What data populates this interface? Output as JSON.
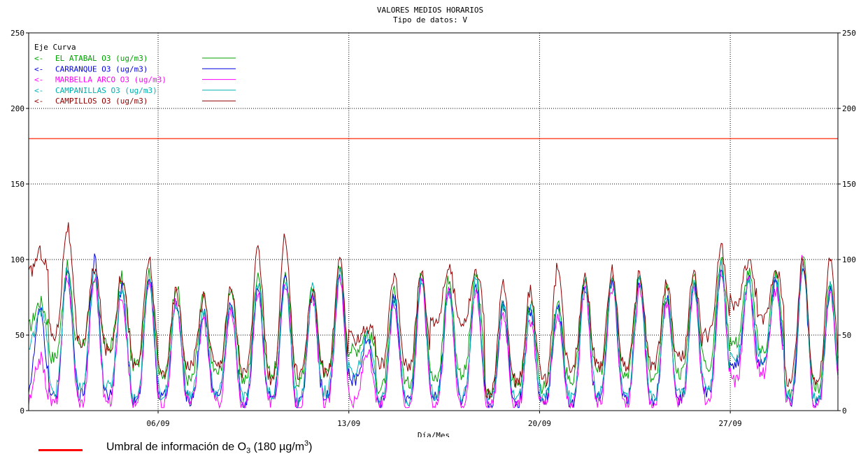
{
  "title": "VALORES MEDIOS HORARIOS",
  "subtitle_label": "Tipo de datos:",
  "subtitle_value": "V",
  "xlabel": "Día/Mes",
  "legend": {
    "header_eje": "Eje",
    "header_curva": "Curva",
    "arrow": "<-"
  },
  "threshold_note": {
    "text_before": "Umbral de información  de O",
    "sub": "3",
    "text_middle": " (180 µg/m",
    "sup": "3",
    "text_after": ")",
    "color": "#ff0000"
  },
  "chart_data": {
    "type": "line",
    "title": "VALORES MEDIOS HORARIOS",
    "subtitle": "Tipo de datos: V",
    "xlabel": "Día/Mes",
    "ylabel": "",
    "ylim": [
      0,
      250
    ],
    "xlim_days": [
      1,
      31
    ],
    "x_unit": "day of September (hourly means)",
    "yticks": [
      0,
      50,
      100,
      150,
      200,
      250
    ],
    "xticks": [
      {
        "day": 6,
        "label": "06/09"
      },
      {
        "day": 13,
        "label": "13/09"
      },
      {
        "day": 20,
        "label": "20/09"
      },
      {
        "day": 27,
        "label": "27/09"
      }
    ],
    "grid": "dotted",
    "legend_position": "top-left",
    "threshold": {
      "value": 180,
      "color": "#ff3b1f"
    },
    "series": [
      {
        "name": "EL ATABAL O3  (ug/m3)",
        "color": "#00a000",
        "daily_peak": [
          72,
          95,
          85,
          88,
          92,
          84,
          75,
          82,
          92,
          90,
          82,
          94,
          52,
          78,
          95,
          88,
          90,
          72,
          70,
          72,
          88,
          92,
          90,
          80,
          88,
          100,
          92,
          90,
          100,
          85,
          90
        ],
        "daily_min": [
          55,
          35,
          45,
          42,
          30,
          22,
          20,
          25,
          20,
          25,
          20,
          25,
          40,
          15,
          18,
          20,
          25,
          10,
          18,
          15,
          20,
          25,
          25,
          20,
          25,
          30,
          45,
          40,
          10,
          15,
          20
        ]
      },
      {
        "name": "CARRANQUE O3  (ug/m3)",
        "color": "#0000e0",
        "daily_peak": [
          65,
          92,
          100,
          80,
          90,
          70,
          65,
          70,
          82,
          86,
          78,
          90,
          48,
          75,
          88,
          80,
          84,
          68,
          66,
          68,
          82,
          86,
          86,
          76,
          84,
          94,
          88,
          86,
          95,
          80,
          85
        ],
        "daily_min": [
          15,
          8,
          10,
          12,
          5,
          8,
          8,
          10,
          5,
          8,
          5,
          10,
          20,
          5,
          5,
          8,
          8,
          5,
          5,
          8,
          5,
          8,
          8,
          5,
          8,
          10,
          30,
          30,
          5,
          5,
          8
        ]
      },
      {
        "name": "MARBELLA ARCO O3  (ug/m3)",
        "color": "#ff00ff",
        "daily_peak": [
          35,
          90,
          88,
          78,
          85,
          72,
          60,
          65,
          80,
          85,
          75,
          88,
          40,
          70,
          85,
          80,
          80,
          65,
          60,
          65,
          78,
          82,
          80,
          72,
          80,
          92,
          85,
          80,
          102,
          80,
          82
        ],
        "daily_min": [
          5,
          5,
          5,
          5,
          3,
          5,
          5,
          5,
          3,
          5,
          3,
          5,
          5,
          3,
          3,
          5,
          5,
          3,
          3,
          5,
          3,
          5,
          5,
          3,
          5,
          5,
          20,
          25,
          5,
          3,
          5
        ]
      },
      {
        "name": "CAMPANILLAS O3  (ug/m3)",
        "color": "#00b0b0",
        "daily_peak": [
          68,
          92,
          90,
          82,
          88,
          72,
          65,
          72,
          85,
          86,
          80,
          92,
          50,
          76,
          88,
          82,
          86,
          70,
          66,
          70,
          84,
          88,
          86,
          78,
          84,
          95,
          88,
          88,
          96,
          82,
          86
        ],
        "daily_min": [
          40,
          12,
          15,
          15,
          8,
          10,
          10,
          12,
          8,
          10,
          8,
          12,
          25,
          8,
          8,
          10,
          10,
          8,
          8,
          10,
          8,
          10,
          10,
          8,
          10,
          15,
          35,
          35,
          8,
          8,
          10
        ]
      },
      {
        "name": "CAMPILLOS O3  (ug/m3)",
        "color": "#900000",
        "daily_peak": [
          105,
          122,
          95,
          90,
          100,
          80,
          75,
          80,
          105,
          115,
          80,
          98,
          55,
          90,
          92,
          95,
          92,
          85,
          80,
          95,
          90,
          92,
          90,
          85,
          90,
          108,
          100,
          95,
          100,
          100,
          108
        ],
        "daily_min": [
          90,
          50,
          45,
          40,
          30,
          25,
          30,
          30,
          25,
          20,
          25,
          25,
          48,
          30,
          30,
          60,
          60,
          10,
          20,
          20,
          30,
          30,
          30,
          30,
          35,
          50,
          70,
          60,
          20,
          20,
          25
        ]
      }
    ]
  }
}
